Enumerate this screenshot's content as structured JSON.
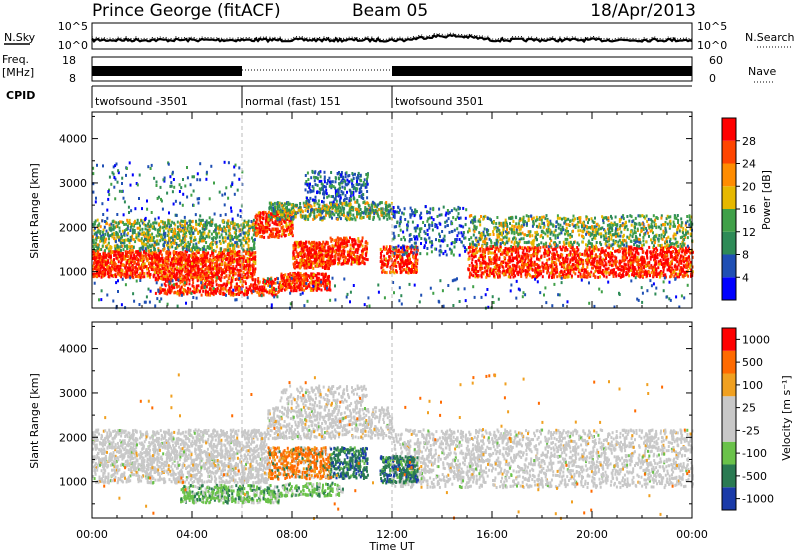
{
  "header": {
    "title": "Prince George (fitACF)",
    "beam": "Beam 05",
    "date": "18/Apr/2013"
  },
  "noise_panel": {
    "left_label": "N.Sky",
    "right_label": "N.Search",
    "left_ticks": [
      "10^5",
      "10^0"
    ],
    "right_ticks": [
      "10^5",
      "10^0"
    ]
  },
  "freq_panel": {
    "left_label_1": "Freq.",
    "left_label_2": "[MHz]",
    "right_label": "Nave",
    "left_ticks": [
      "18",
      "8"
    ],
    "right_ticks": [
      "60",
      "0"
    ]
  },
  "cpid": {
    "label": "CPID",
    "segments": [
      {
        "name": "twofsound -3501",
        "start_h": 0,
        "end_h": 6
      },
      {
        "name": "normal (fast) 151",
        "start_h": 6,
        "end_h": 12
      },
      {
        "name": "twofsound 3501",
        "start_h": 12,
        "end_h": 24
      }
    ]
  },
  "chart_data": [
    {
      "type": "heatmap",
      "parameter": "Power",
      "ylabel": "Slant Range [km]",
      "yticks": [
        1000,
        2000,
        3000,
        4000
      ],
      "ylim": [
        180,
        4600
      ],
      "xlim": [
        0,
        24
      ],
      "colorbar": {
        "label": "Power [dB]",
        "ticks": [
          "4",
          "8",
          "12",
          "16",
          "20",
          "24",
          "28"
        ],
        "colors": [
          "#0000ff",
          "#1f4fb4",
          "#2e8b57",
          "#40a048",
          "#e6b800",
          "#ff8c00",
          "#ff4500",
          "#ff0000"
        ]
      }
    },
    {
      "type": "heatmap",
      "parameter": "Velocity",
      "ylabel": "Slant Range [km]",
      "yticks": [
        1000,
        2000,
        3000,
        4000
      ],
      "ylim": [
        180,
        4600
      ],
      "xlim": [
        0,
        24
      ],
      "colorbar": {
        "label": "Velocity [m s⁻¹]",
        "ticks": [
          "1000",
          "500",
          "100",
          "25",
          "-25",
          "-100",
          "-500",
          "-1000"
        ],
        "colors": [
          "#1a3aa8",
          "#2a7a52",
          "#6ac24a",
          "#c8c8c8",
          "#c8c8c8",
          "#f0a020",
          "#ff6a00",
          "#ff0000"
        ]
      }
    }
  ],
  "x_axis": {
    "title": "Time UT",
    "ticks": [
      "00:00",
      "04:00",
      "08:00",
      "12:00",
      "16:00",
      "20:00",
      "00:00"
    ],
    "tick_hours": [
      0,
      4,
      8,
      12,
      16,
      20,
      24
    ]
  }
}
